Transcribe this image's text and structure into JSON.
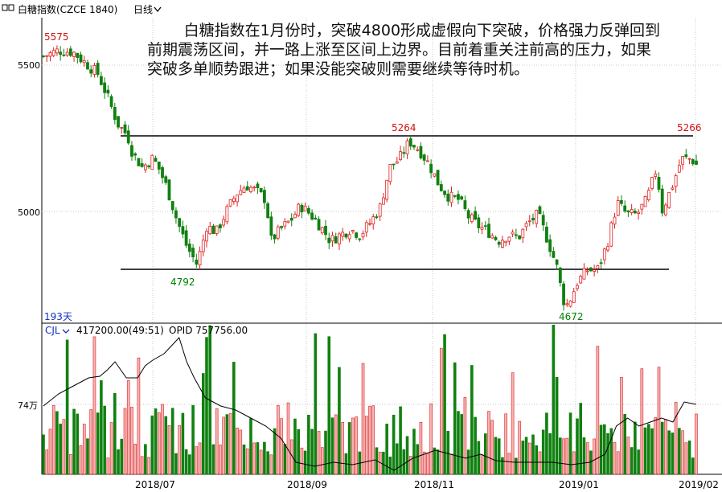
{
  "header": {
    "title": "白糖指数(CZCE 1840)",
    "period": "日线",
    "period_arrow": "chevron-down-icon"
  },
  "annotation": "白糖指数在1月份时，突破4800形成虚假向下突破，价格强力反弹回到前期震荡区间，并一路上涨至区间上边界。目前着重关注前高的压力，如果突破多单顺势跟进；如果没能突破则需要继续等待时机。",
  "price_panel": {
    "y_ticks": [
      "5500",
      "5000"
    ],
    "bar_count_label": "193天",
    "labels": {
      "high_start": "5575",
      "high_mid": "5264",
      "high_end": "5266",
      "low_1": "4792",
      "low_2": "4672"
    }
  },
  "volume_panel": {
    "indicator": "CJL",
    "indicator_arrow": "chevron-down-icon",
    "volume_value": "417200.00(49:51)",
    "opid_label": "OPID 757756.00",
    "y_tick": "74万"
  },
  "x_axis": {
    "labels": [
      "2018/07",
      "2018/09",
      "2018/11",
      "2019/01",
      "2019/02"
    ]
  },
  "chart_data": [
    {
      "type": "candlestick",
      "title": "白糖指数(CZCE 1840)",
      "x_labels": [
        "2018/07",
        "2018/09",
        "2018/11",
        "2019/01",
        "2019/02"
      ],
      "y_ticks": [
        5500,
        5000
      ],
      "ylim": [
        4580,
        5670
      ],
      "bars": 193,
      "annotated_levels": {
        "resistance": 5264,
        "support": 4792
      },
      "points": [
        {
          "label": "5575",
          "value": 5575
        },
        {
          "label": "5264",
          "value": 5264
        },
        {
          "label": "5266",
          "value": 5266
        },
        {
          "label": "4792",
          "value": 4792
        },
        {
          "label": "4672",
          "value": 4672
        }
      ],
      "close_path": [
        [
          0,
          5530
        ],
        [
          6,
          5550
        ],
        [
          12,
          5545
        ],
        [
          18,
          5500
        ],
        [
          22,
          5470
        ],
        [
          26,
          5390
        ],
        [
          30,
          5300
        ],
        [
          34,
          5260
        ],
        [
          36,
          5200
        ],
        [
          40,
          5150
        ],
        [
          44,
          5180
        ],
        [
          46,
          5160
        ],
        [
          50,
          5080
        ],
        [
          54,
          4970
        ],
        [
          58,
          4880
        ],
        [
          62,
          4820
        ],
        [
          64,
          4880
        ],
        [
          66,
          4950
        ],
        [
          70,
          4930
        ],
        [
          74,
          5000
        ],
        [
          78,
          5060
        ],
        [
          82,
          5090
        ],
        [
          86,
          5070
        ],
        [
          90,
          5040
        ],
        [
          92,
          4900
        ],
        [
          96,
          4940
        ],
        [
          100,
          4970
        ],
        [
          104,
          5020
        ],
        [
          108,
          4990
        ],
        [
          112,
          4950
        ],
        [
          116,
          4900
        ],
        [
          120,
          4920
        ],
        [
          124,
          4940
        ],
        [
          128,
          4920
        ],
        [
          132,
          4960
        ],
        [
          136,
          5010
        ],
        [
          140,
          5150
        ],
        [
          144,
          5180
        ],
        [
          148,
          5240
        ],
        [
          152,
          5210
        ],
        [
          156,
          5160
        ],
        [
          160,
          5090
        ],
        [
          164,
          5050
        ],
        [
          168,
          5040
        ],
        [
          172,
          4980
        ],
        [
          176,
          4950
        ],
        [
          180,
          4930
        ],
        [
          184,
          4900
        ],
        [
          188,
          4920
        ],
        [
          192,
          4910
        ],
        [
          196,
          4960
        ],
        [
          200,
          4990
        ],
        [
          204,
          4900
        ],
        [
          208,
          4800
        ],
        [
          210,
          4700
        ],
        [
          212,
          4680
        ],
        [
          216,
          4760
        ],
        [
          220,
          4800
        ],
        [
          224,
          4800
        ],
        [
          228,
          4890
        ],
        [
          232,
          5030
        ],
        [
          236,
          4990
        ],
        [
          240,
          4990
        ],
        [
          244,
          5040
        ],
        [
          248,
          5150
        ],
        [
          250,
          5000
        ],
        [
          254,
          5080
        ],
        [
          258,
          5180
        ],
        [
          262,
          5180
        ],
        [
          264,
          5160
        ]
      ]
    },
    {
      "type": "bar",
      "title": "CJL",
      "series": [
        {
          "name": "CJL",
          "last_value": 417200.0
        },
        {
          "name": "OPID",
          "last_value": 757756.0
        }
      ],
      "y_ticks": [
        "74万"
      ]
    }
  ]
}
